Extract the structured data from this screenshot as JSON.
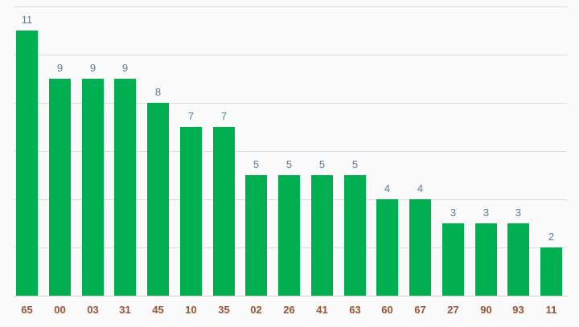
{
  "chart_data": {
    "type": "bar",
    "categories": [
      "65",
      "00",
      "03",
      "31",
      "45",
      "10",
      "35",
      "02",
      "26",
      "41",
      "63",
      "60",
      "67",
      "27",
      "90",
      "93",
      "11"
    ],
    "values": [
      11,
      9,
      9,
      9,
      8,
      7,
      7,
      5,
      5,
      5,
      5,
      4,
      4,
      3,
      3,
      3,
      2
    ],
    "title": "",
    "xlabel": "",
    "ylabel": "",
    "ylim": [
      0,
      12
    ],
    "grid": true,
    "data_labels": true,
    "legend": "none",
    "colors": {
      "bar": "#00b050",
      "value_label": "#5a7f93",
      "category_label": "#a0522d",
      "grid": "#dedede",
      "background": "#fafafa"
    }
  }
}
